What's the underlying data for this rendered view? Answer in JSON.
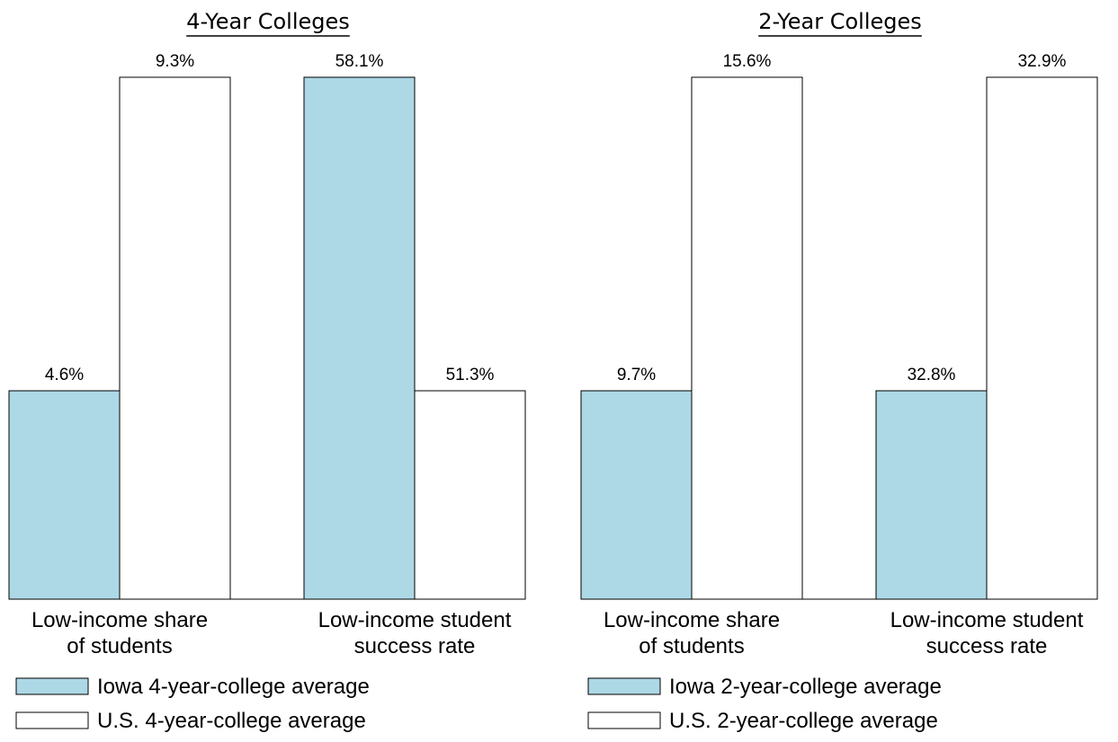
{
  "chart_data": [
    {
      "type": "bar",
      "title": "4-Year Colleges",
      "categories": [
        [
          "Low-income share",
          "of students"
        ],
        [
          "Low-income student",
          "success rate"
        ]
      ],
      "series": [
        {
          "name": "Iowa 4-year-college average",
          "values": [
            4.6,
            58.1
          ],
          "labels": [
            "4.6%",
            "58.1%"
          ],
          "color": "#add8e6"
        },
        {
          "name": "U.S. 4-year-college average",
          "values": [
            9.3,
            51.3
          ],
          "labels": [
            "9.3%",
            "51.3%"
          ],
          "color": "#ffffff"
        }
      ]
    },
    {
      "type": "bar",
      "title": "2-Year Colleges",
      "categories": [
        [
          "Low-income share",
          "of students"
        ],
        [
          "Low-income student",
          "success rate"
        ]
      ],
      "series": [
        {
          "name": "Iowa 2-year-college average",
          "values": [
            9.7,
            32.8
          ],
          "labels": [
            "9.7%",
            "32.8%"
          ],
          "color": "#add8e6"
        },
        {
          "name": "U.S. 2-year-college average",
          "values": [
            15.6,
            32.9
          ],
          "labels": [
            "15.6%",
            "32.9%"
          ],
          "color": "#ffffff"
        }
      ]
    }
  ]
}
